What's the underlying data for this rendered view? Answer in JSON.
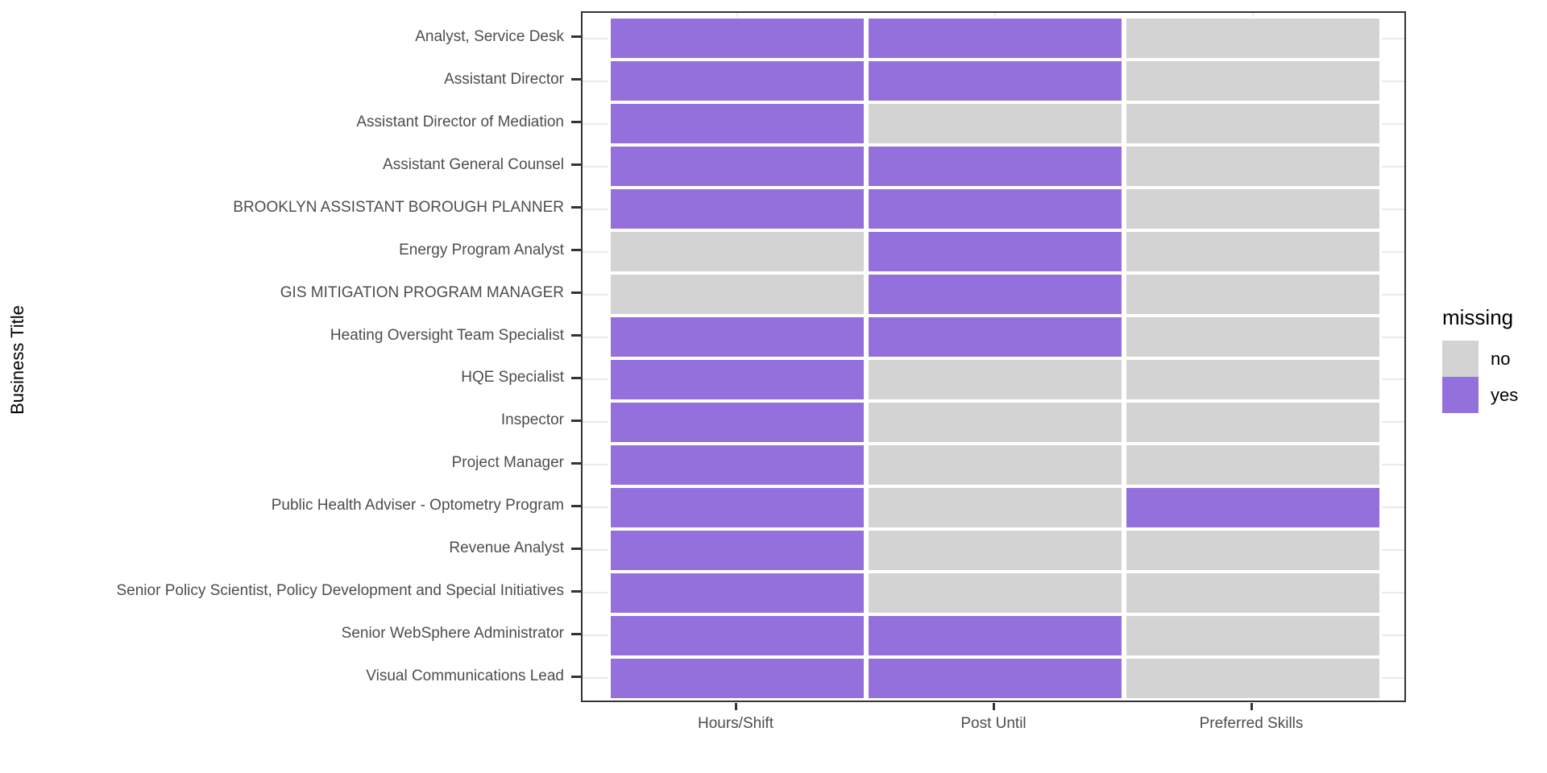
{
  "chart_data": {
    "type": "heatmap",
    "title": "",
    "xlabel": "",
    "ylabel": "Business Title",
    "x_categories": [
      "Hours/Shift",
      "Post Until",
      "Preferred Skills"
    ],
    "y_categories": [
      "Analyst, Service Desk",
      "Assistant Director",
      "Assistant Director of Mediation",
      "Assistant General Counsel",
      "BROOKLYN ASSISTANT BOROUGH PLANNER",
      "Energy Program Analyst",
      "GIS MITIGATION PROGRAM MANAGER",
      "Heating Oversight Team Specialist",
      "HQE Specialist",
      "Inspector",
      "Project Manager",
      "Public Health Adviser - Optometry Program",
      "Revenue Analyst",
      "Senior Policy Scientist, Policy Development and Special Initiatives",
      "Senior WebSphere Administrator",
      "Visual Communications Lead"
    ],
    "values": [
      [
        "yes",
        "yes",
        "no"
      ],
      [
        "yes",
        "yes",
        "no"
      ],
      [
        "yes",
        "no",
        "no"
      ],
      [
        "yes",
        "yes",
        "no"
      ],
      [
        "yes",
        "yes",
        "no"
      ],
      [
        "no",
        "yes",
        "no"
      ],
      [
        "no",
        "yes",
        "no"
      ],
      [
        "yes",
        "yes",
        "no"
      ],
      [
        "yes",
        "no",
        "no"
      ],
      [
        "yes",
        "no",
        "no"
      ],
      [
        "yes",
        "no",
        "no"
      ],
      [
        "yes",
        "no",
        "yes"
      ],
      [
        "yes",
        "no",
        "no"
      ],
      [
        "yes",
        "no",
        "no"
      ],
      [
        "yes",
        "yes",
        "no"
      ],
      [
        "yes",
        "yes",
        "no"
      ]
    ],
    "value_meaning": "missing",
    "colors": {
      "no": "#D3D3D3",
      "yes": "#9370DB"
    },
    "legend": {
      "title": "missing",
      "position": "right",
      "entries": [
        {
          "label": "no",
          "value": "no",
          "color": "#D3D3D3"
        },
        {
          "label": "yes",
          "value": "yes",
          "color": "#9370DB"
        }
      ]
    },
    "grid": true,
    "styles": {
      "background": "#FFFFFF",
      "gridline_color": "#EBEBEB",
      "panel_border_color": "#333333",
      "tick_color": "#333333",
      "axis_text_color": "#4D4D4D",
      "title_text_color": "#000000"
    }
  }
}
